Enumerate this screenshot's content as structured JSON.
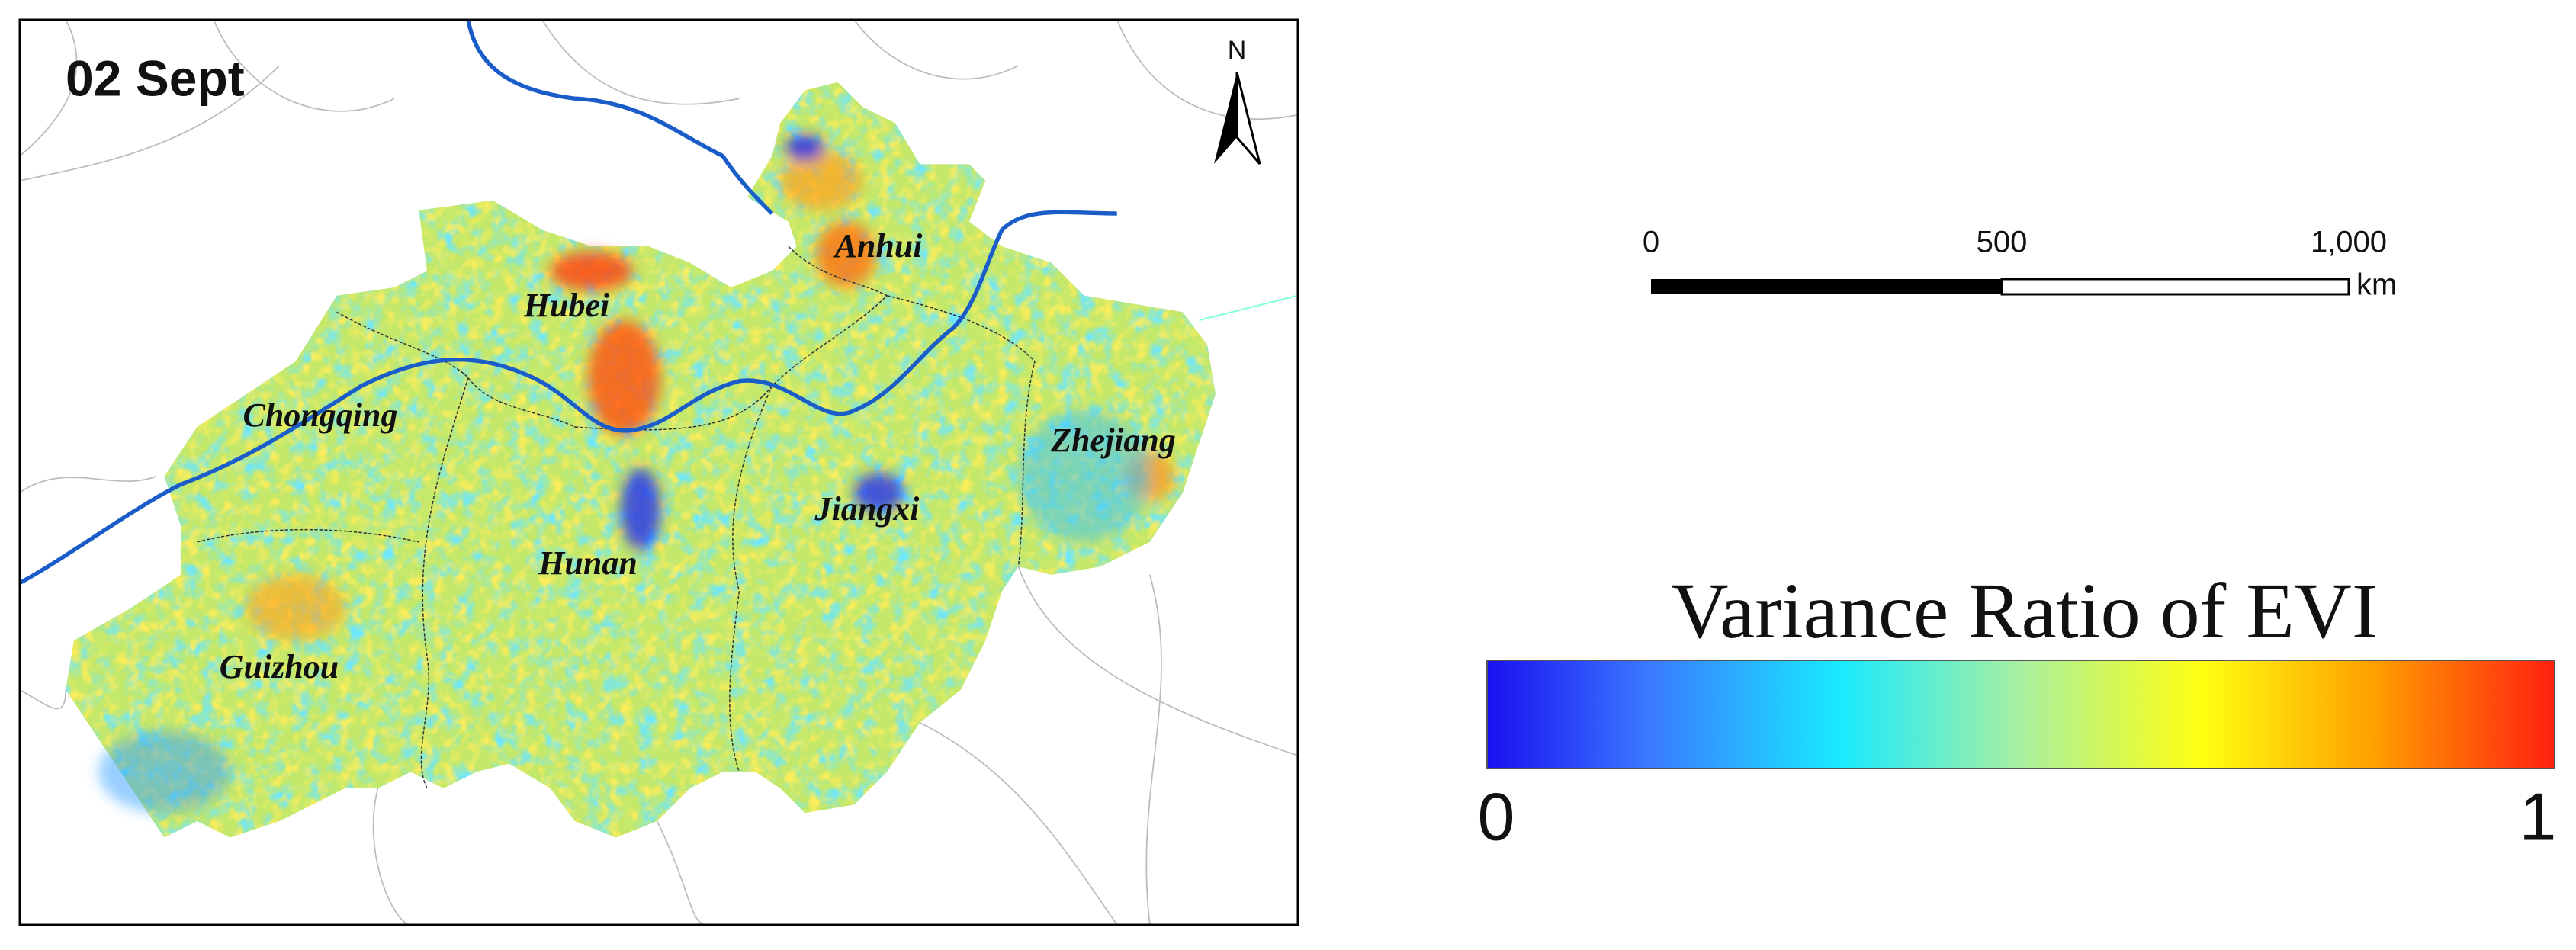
{
  "map": {
    "title": "02 Sept",
    "north": "N",
    "provinces": [
      "Hubei",
      "Anhui",
      "Chongqing",
      "Zhejiang",
      "Jiangxi",
      "Hunan",
      "Guizhou"
    ]
  },
  "scale_bar": {
    "labels": [
      "0",
      "500",
      "1,000"
    ],
    "unit": "km"
  },
  "legend": {
    "title": "Variance Ratio of EVI",
    "min_label": "0",
    "max_label": "1"
  }
}
